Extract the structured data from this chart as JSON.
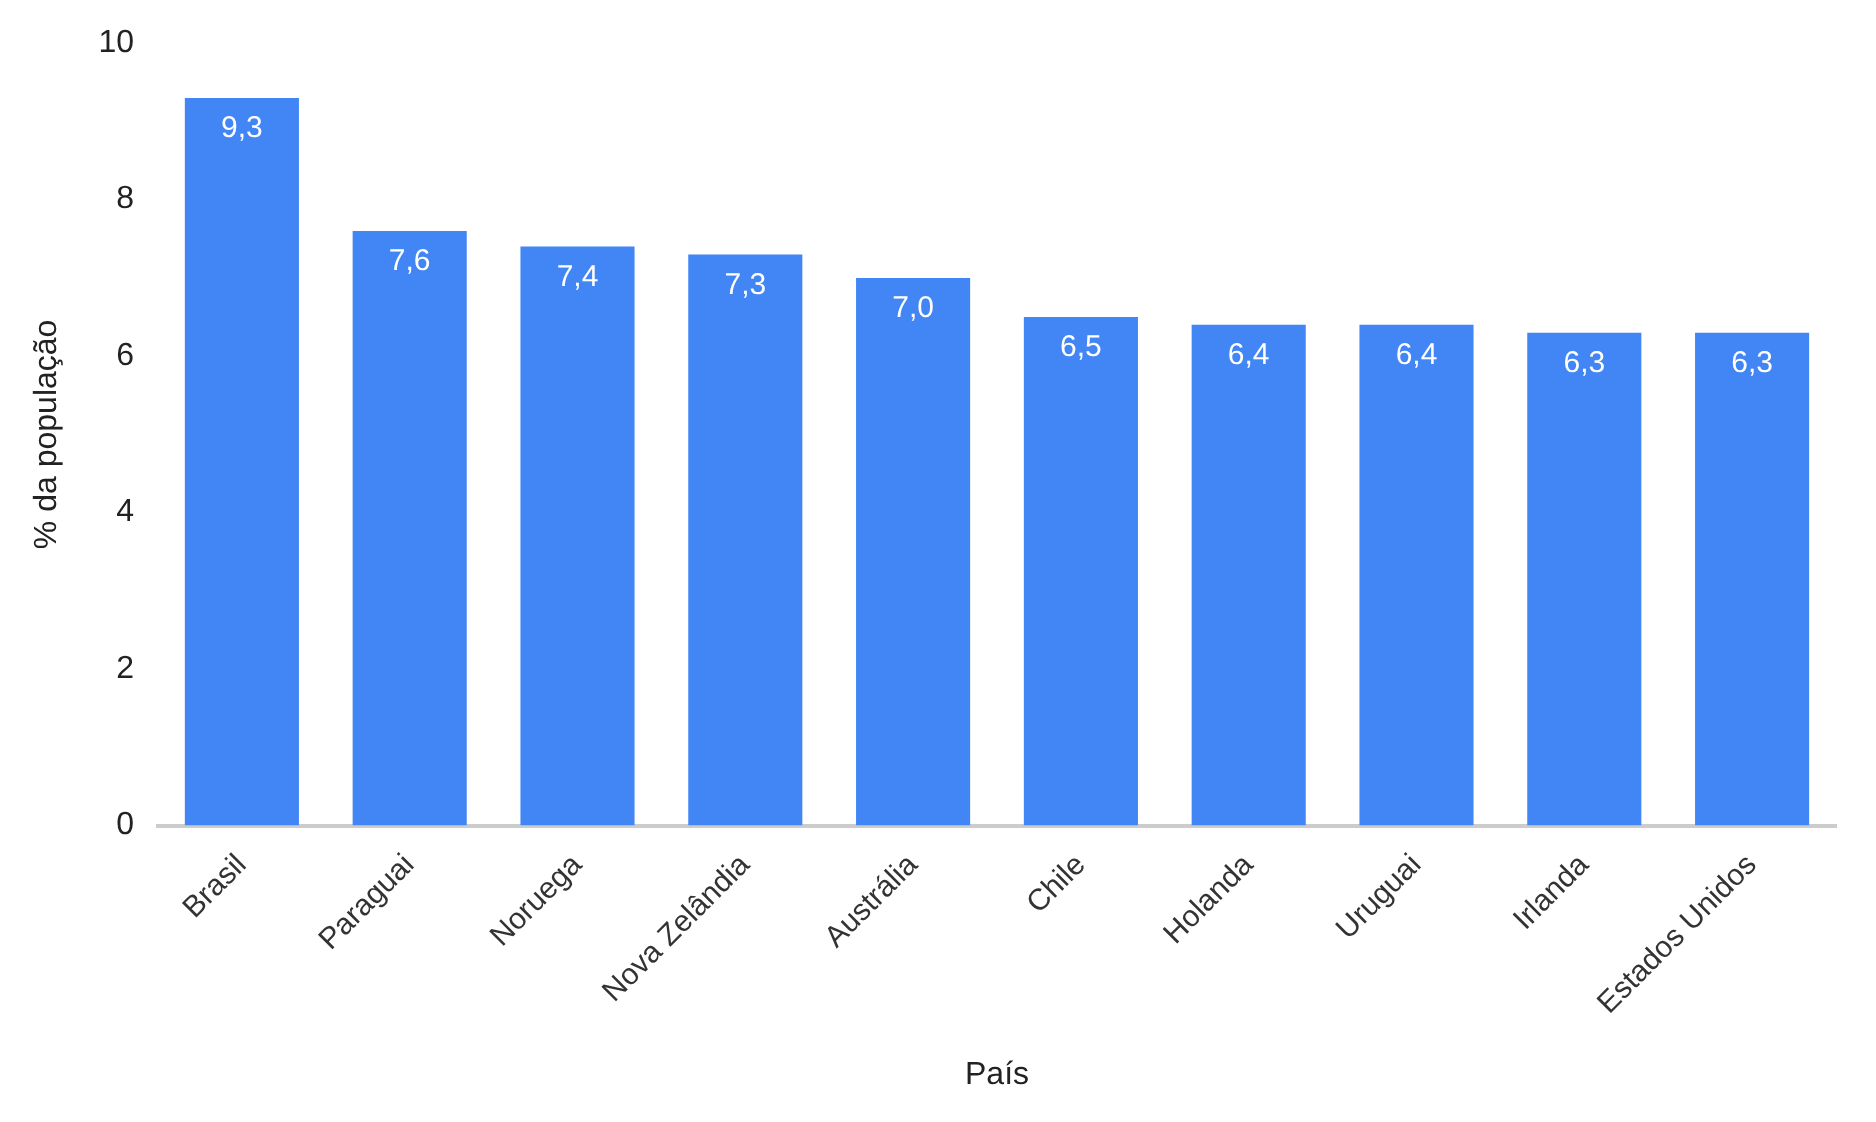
{
  "chart_data": {
    "type": "bar",
    "xlabel": "País",
    "ylabel": "% da população",
    "categories": [
      "Brasil",
      "Paraguai",
      "Noruega",
      "Nova Zelândia",
      "Austrália",
      "Chile",
      "Holanda",
      "Uruguai",
      "Irlanda",
      "Estados Unidos"
    ],
    "values": [
      9.3,
      7.6,
      7.4,
      7.3,
      7.0,
      6.5,
      6.4,
      6.4,
      6.3,
      6.3
    ],
    "value_labels": [
      "9,3",
      "7,6",
      "7,4",
      "7,3",
      "7,0",
      "6,5",
      "6,4",
      "6,4",
      "6,3",
      "6,3"
    ],
    "color": "#4285f4",
    "ylim": [
      0,
      10
    ],
    "yticks": [
      0,
      2,
      4,
      6,
      8,
      10
    ],
    "grid": false,
    "legend": false
  }
}
